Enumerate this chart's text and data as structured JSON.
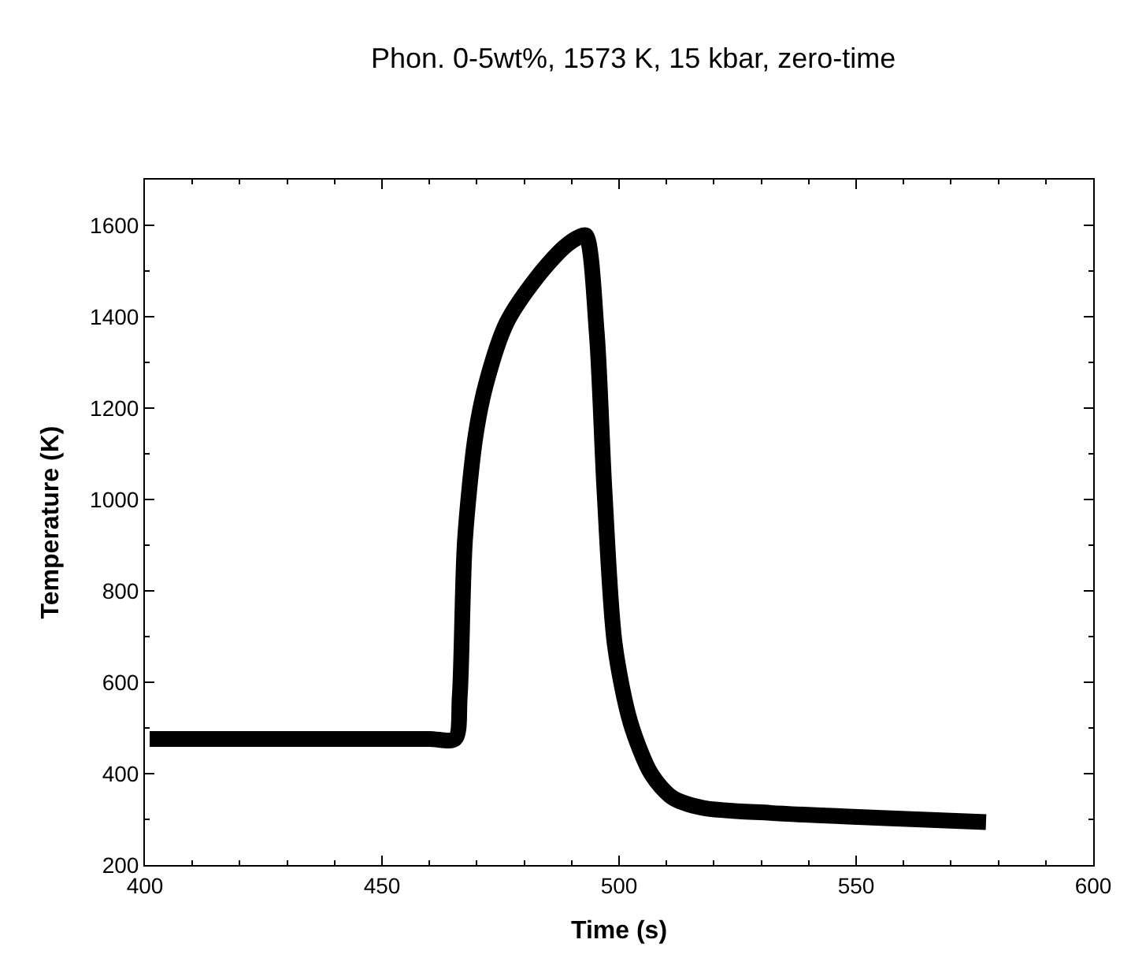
{
  "chart_data": {
    "type": "line",
    "title": "Phon. 0-5wt%, 1573 K, 15 kbar, zero-time",
    "xlabel": "Time (s)",
    "ylabel": "Temperature (K)",
    "x": [
      401,
      420,
      440,
      460,
      465.4,
      466.4,
      467.5,
      469.7,
      471.9,
      476.3,
      482.9,
      488.4,
      491.7,
      493,
      495.3,
      496.9,
      499.1,
      502.4,
      506.8,
      511.2,
      517.7,
      532,
      548.4,
      564.8,
      577.4
    ],
    "series": [
      {
        "color": "#000000",
        "values": [
          476,
          476,
          476,
          476,
          476,
          569,
          910,
          1137,
          1251,
          1387,
          1489,
          1552,
          1575,
          1578,
          1364,
          1024,
          683,
          512,
          399,
          348,
          325,
          314,
          306,
          299,
          294
        ]
      }
    ],
    "xlim": [
      400,
      600
    ],
    "xticks": [
      400,
      450,
      500,
      550,
      600
    ],
    "ylim": [
      200,
      1700
    ],
    "yticks": [
      200,
      400,
      600,
      800,
      1000,
      1200,
      1400,
      1600
    ],
    "grid": false,
    "marker": "none",
    "line_style": "solid"
  }
}
